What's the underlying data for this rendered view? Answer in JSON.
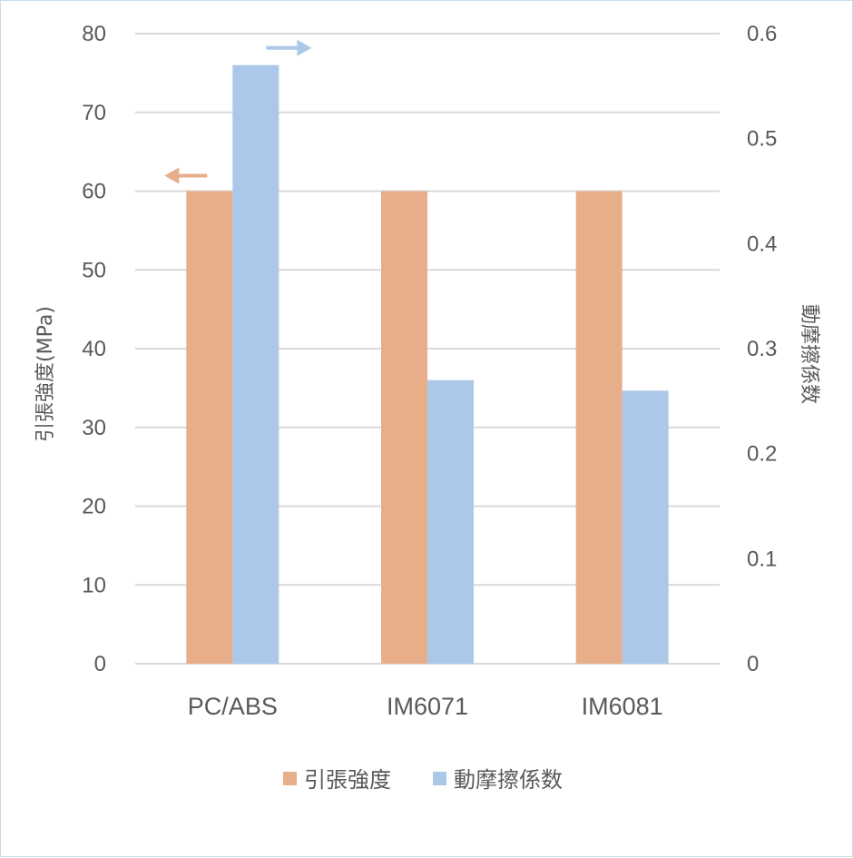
{
  "chart_data": {
    "type": "bar",
    "title": "",
    "categories": [
      "PC/ABS",
      "IM6071",
      "IM6081"
    ],
    "series": [
      {
        "name": "引張強度",
        "axis": "left",
        "color": "#E8AE8A",
        "values": [
          60,
          60,
          60
        ]
      },
      {
        "name": "動摩擦係数",
        "axis": "right",
        "color": "#ABC8E8",
        "values": [
          0.57,
          0.27,
          0.26
        ]
      }
    ],
    "left_axis": {
      "label": "引張強度(MPa)",
      "ylim": [
        0,
        80
      ],
      "ticks": [
        "0",
        "10",
        "20",
        "30",
        "40",
        "50",
        "60",
        "70",
        "80"
      ]
    },
    "right_axis": {
      "label": "動摩擦係数",
      "ylim": [
        0,
        0.6
      ],
      "ticks": [
        "0",
        "0.1",
        "0.2",
        "0.3",
        "0.4",
        "0.5",
        "0.6"
      ]
    },
    "grid": true,
    "legend": "bottom",
    "annotations": [
      {
        "type": "arrow",
        "direction": "left",
        "series": "引張強度",
        "color": "#E8AE8A"
      },
      {
        "type": "arrow",
        "direction": "right",
        "series": "動摩擦係数",
        "color": "#ABC8E8"
      }
    ]
  }
}
